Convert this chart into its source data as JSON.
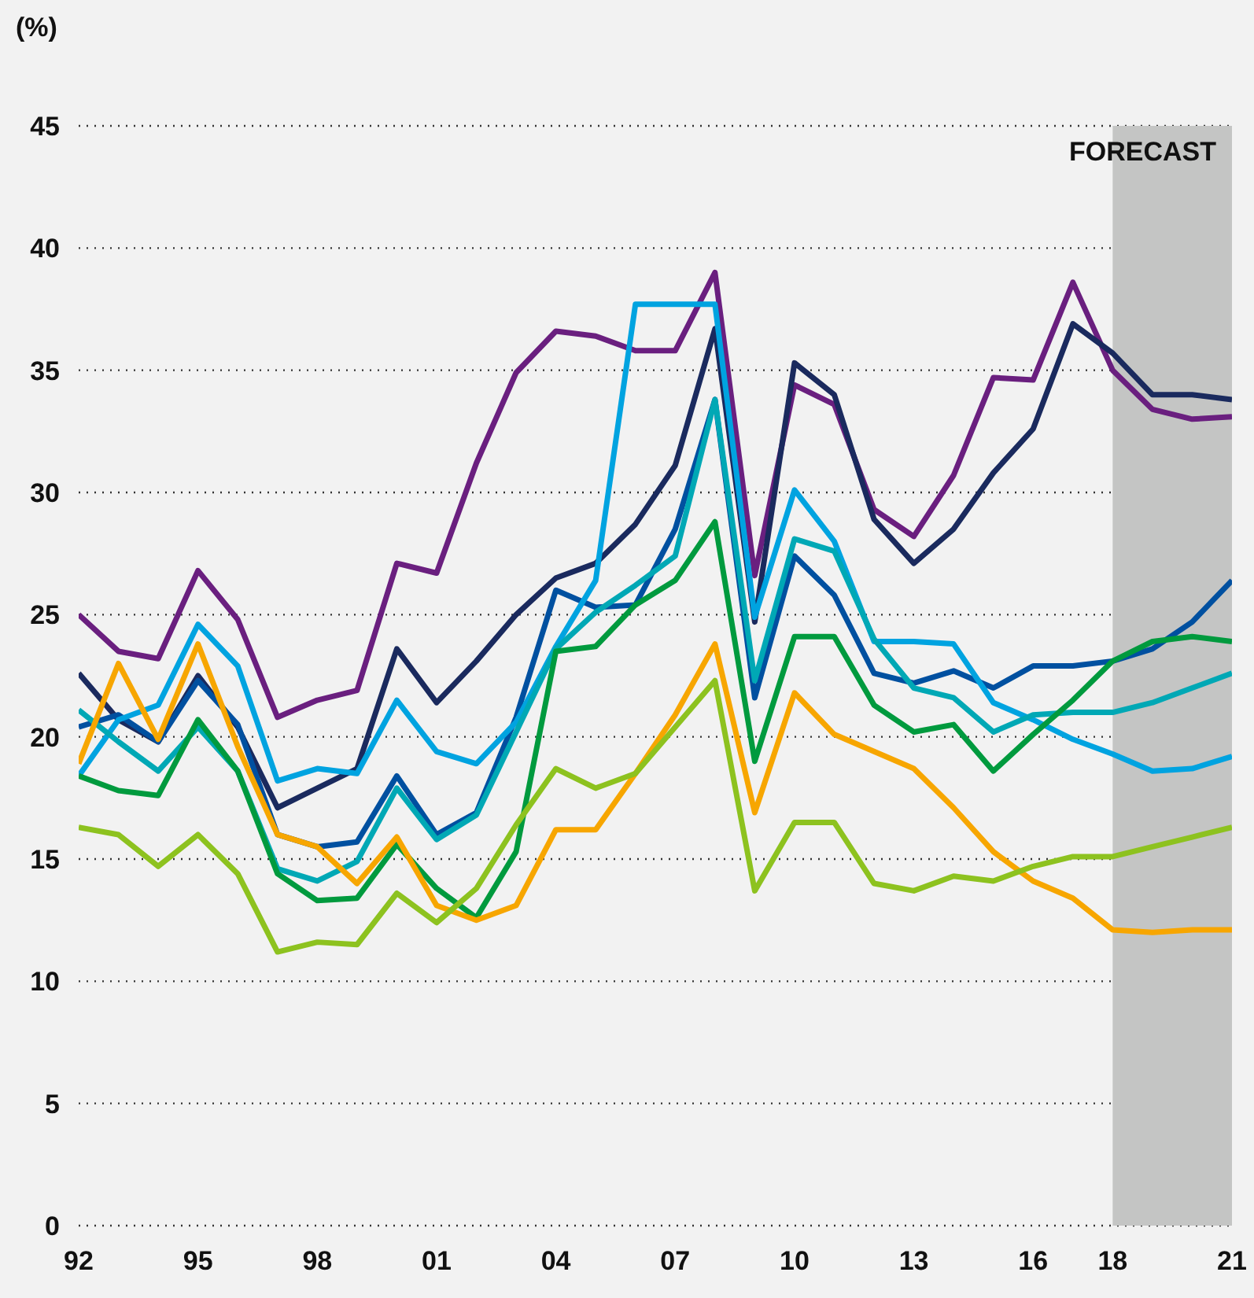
{
  "chart_data": {
    "type": "line",
    "ylabel": "(%)",
    "x": [
      1992,
      1993,
      1994,
      1995,
      1996,
      1997,
      1998,
      1999,
      2000,
      2001,
      2002,
      2003,
      2004,
      2005,
      2006,
      2007,
      2008,
      2009,
      2010,
      2011,
      2012,
      2013,
      2014,
      2015,
      2016,
      2017,
      2018,
      2019,
      2020,
      2021
    ],
    "xlim": [
      1992,
      2021
    ],
    "xticks": [
      {
        "value": 1992,
        "label": "92"
      },
      {
        "value": 1995,
        "label": "95"
      },
      {
        "value": 1998,
        "label": "98"
      },
      {
        "value": 2001,
        "label": "01"
      },
      {
        "value": 2004,
        "label": "04"
      },
      {
        "value": 2007,
        "label": "07"
      },
      {
        "value": 2010,
        "label": "10"
      },
      {
        "value": 2013,
        "label": "13"
      },
      {
        "value": 2016,
        "label": "16"
      },
      {
        "value": 2018,
        "label": "18"
      },
      {
        "value": 2021,
        "label": "21"
      }
    ],
    "ylim": [
      0,
      45
    ],
    "yticks": [
      0,
      5,
      10,
      15,
      20,
      25,
      30,
      35,
      40,
      45
    ],
    "grid": "y",
    "legend": false,
    "bands": [
      {
        "axis": "x",
        "from": 2018,
        "to": 2021,
        "label": "FORECAST",
        "color": "#c4c5c4"
      }
    ],
    "series": [
      {
        "color": "#6a1f7f",
        "values": [
          25.0,
          23.5,
          23.2,
          26.8,
          24.8,
          20.8,
          21.5,
          21.9,
          27.1,
          26.7,
          31.2,
          34.9,
          36.6,
          36.4,
          35.8,
          35.8,
          39.0,
          26.6,
          34.4,
          33.6,
          29.3,
          28.2,
          30.7,
          34.7,
          34.6,
          38.6,
          35.0,
          33.4,
          33.0,
          33.1
        ]
      },
      {
        "color": "#1a2a5e",
        "values": [
          22.6,
          20.7,
          19.8,
          22.5,
          20.4,
          17.1,
          17.9,
          18.7,
          23.6,
          21.4,
          23.1,
          25.0,
          26.5,
          27.1,
          28.7,
          31.1,
          36.7,
          24.7,
          35.3,
          34.0,
          28.9,
          27.1,
          28.5,
          30.8,
          32.6,
          36.9,
          35.7,
          34.0,
          34.0,
          33.8
        ]
      },
      {
        "color": "#0050a0",
        "values": [
          20.4,
          20.9,
          19.8,
          22.3,
          20.5,
          16.0,
          15.5,
          15.7,
          18.4,
          16.0,
          16.9,
          20.8,
          26.0,
          25.3,
          25.4,
          28.5,
          33.8,
          21.6,
          27.4,
          25.8,
          22.6,
          22.2,
          22.7,
          22.0,
          22.9,
          22.9,
          23.1,
          23.6,
          24.7,
          26.4
        ]
      },
      {
        "color": "#00a3e0",
        "values": [
          18.4,
          20.7,
          21.3,
          24.6,
          22.9,
          18.2,
          18.7,
          18.5,
          21.5,
          19.4,
          18.9,
          20.6,
          23.7,
          26.4,
          37.7,
          37.7,
          37.7,
          24.9,
          30.1,
          28.0,
          23.9,
          23.9,
          23.8,
          21.4,
          20.7,
          19.9,
          19.3,
          18.6,
          18.7,
          19.2
        ]
      },
      {
        "color": "#00a8b5",
        "values": [
          21.1,
          19.8,
          18.6,
          20.4,
          18.6,
          14.6,
          14.1,
          14.9,
          17.9,
          15.8,
          16.8,
          20.2,
          23.6,
          25.1,
          26.2,
          27.4,
          33.8,
          22.3,
          28.1,
          27.6,
          24.0,
          22.0,
          21.6,
          20.2,
          20.9,
          21.0,
          21.0,
          21.4,
          22.0,
          22.6
        ]
      },
      {
        "color": "#009a3e",
        "values": [
          18.4,
          17.8,
          17.6,
          20.7,
          18.6,
          14.4,
          13.3,
          13.4,
          15.6,
          13.8,
          12.6,
          15.3,
          23.5,
          23.7,
          25.4,
          26.4,
          28.8,
          19.0,
          24.1,
          24.1,
          21.3,
          20.2,
          20.5,
          18.6,
          20.1,
          21.5,
          23.1,
          23.9,
          24.1,
          23.9
        ]
      },
      {
        "color": "#f7a600",
        "values": [
          18.9,
          23.0,
          19.9,
          23.8,
          19.6,
          16.0,
          15.5,
          14.0,
          15.9,
          13.1,
          12.5,
          13.1,
          16.2,
          16.2,
          18.5,
          20.9,
          23.8,
          16.9,
          21.8,
          20.1,
          19.4,
          18.7,
          17.1,
          15.3,
          14.1,
          13.4,
          12.1,
          12.0,
          12.1,
          12.1
        ]
      },
      {
        "color": "#8dc21f",
        "values": [
          16.3,
          16.0,
          14.7,
          16.0,
          14.4,
          11.2,
          11.6,
          11.5,
          13.6,
          12.4,
          13.8,
          16.4,
          18.7,
          17.9,
          18.5,
          20.4,
          22.3,
          13.7,
          16.5,
          16.5,
          14.0,
          13.7,
          14.3,
          14.1,
          14.7,
          15.1,
          15.1,
          15.5,
          15.9,
          16.3
        ]
      }
    ]
  }
}
